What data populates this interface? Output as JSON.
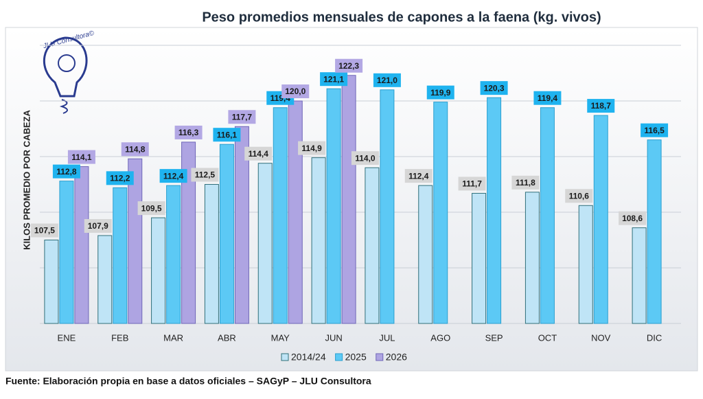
{
  "chart_data": {
    "type": "bar",
    "title": "Peso promedios mensuales de capones a la faena (kg. vivos)",
    "y_label": "KILOS PROMEDIO POR CABEZA",
    "logo_text": "JLU Consultora©",
    "source": "Fuente: Elaboración propia en base a datos oficiales – SAGyP – JLU Consultora",
    "categories": [
      "ENE",
      "FEB",
      "MAR",
      "ABR",
      "MAY",
      "JUN",
      "JUL",
      "AGO",
      "SEP",
      "OCT",
      "NOV",
      "DIC"
    ],
    "series": [
      {
        "name": "2014/24",
        "color": "#bfe4f6",
        "values": [
          107.5,
          107.9,
          109.5,
          112.5,
          114.4,
          114.9,
          114.0,
          112.4,
          111.7,
          111.8,
          110.6,
          108.6
        ],
        "value_labels": [
          "107,5",
          "107,9",
          "109,5",
          "112,5",
          "114,4",
          "114,9",
          "114,0",
          "112,4",
          "111,7",
          "111,8",
          "110,6",
          "108,6"
        ]
      },
      {
        "name": "2025",
        "color": "#5cc9f5",
        "values": [
          112.8,
          112.2,
          112.4,
          116.1,
          119.4,
          121.1,
          121.0,
          119.9,
          120.3,
          119.4,
          118.7,
          116.5
        ],
        "value_labels": [
          "112,8",
          "112,2",
          "112,4",
          "116,1",
          "119,4",
          "121,1",
          "121,0",
          "119,9",
          "120,3",
          "119,4",
          "118,7",
          "116,5"
        ]
      },
      {
        "name": "2026",
        "color": "#aea4e2",
        "values": [
          114.1,
          114.8,
          116.3,
          117.7,
          120.0,
          122.3,
          null,
          null,
          null,
          null,
          null,
          null
        ],
        "value_labels": [
          "114,1",
          "114,8",
          "116,3",
          "117,7",
          "120,0",
          "122,3",
          null,
          null,
          null,
          null,
          null,
          null
        ]
      }
    ],
    "ylim": [
      100,
      125
    ],
    "yticks": [
      100,
      105,
      110,
      115,
      120,
      125
    ],
    "grid": true
  }
}
